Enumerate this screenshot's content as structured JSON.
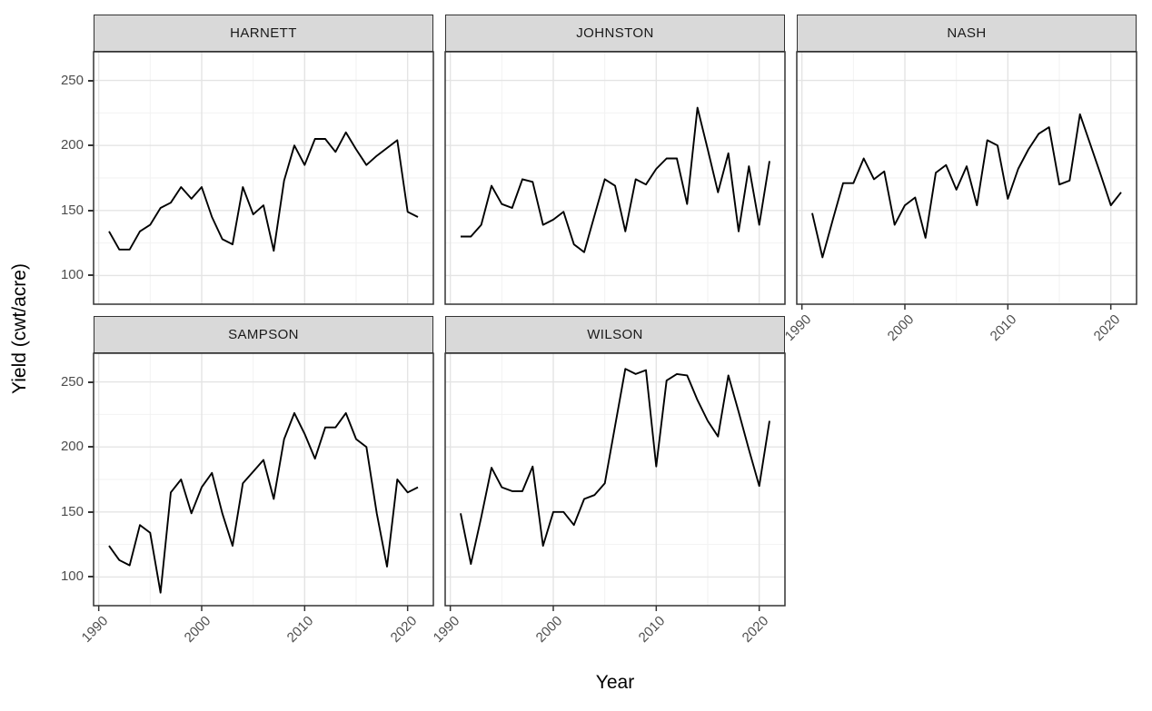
{
  "figure": {
    "kind": "faceted line chart",
    "x_axis_title": "Year",
    "y_axis_title": "Yield (cwt/acre)"
  },
  "chart_data": {
    "type": "line",
    "title": "",
    "xlabel": "Year",
    "ylabel": "Yield (cwt/acre)",
    "facet_labels": [
      "HARNETT",
      "JOHNSTON",
      "NASH",
      "SAMPSON",
      "WILSON"
    ],
    "x": [
      1991,
      1992,
      1993,
      1994,
      1995,
      1996,
      1997,
      1998,
      1999,
      2000,
      2001,
      2002,
      2003,
      2004,
      2005,
      2006,
      2007,
      2008,
      2009,
      2010,
      2011,
      2012,
      2013,
      2014,
      2015,
      2016,
      2017,
      2018,
      2019,
      2020,
      2021
    ],
    "x_ticks": [
      1990,
      2000,
      2010,
      2020
    ],
    "y_ticks": [
      100,
      150,
      200,
      250
    ],
    "x_minor_ticks": [
      1995,
      2005,
      2015
    ],
    "y_minor_ticks": [
      125,
      175,
      225
    ],
    "x_range": [
      1989.5,
      2022.5
    ],
    "y_range": [
      78,
      272
    ],
    "grid": true,
    "legend_position": "none",
    "line_color": "#000000",
    "strip_fill": "#d9d9d9",
    "series": [
      {
        "name": "HARNETT",
        "values": [
          134,
          120,
          120,
          134,
          139,
          152,
          156,
          168,
          159,
          168,
          145,
          128,
          124,
          168,
          147,
          154,
          119,
          173,
          200,
          185,
          205,
          205,
          195,
          210,
          197,
          185,
          192,
          198,
          204,
          149,
          145
        ]
      },
      {
        "name": "JOHNSTON",
        "values": [
          130,
          130,
          139,
          169,
          155,
          152,
          174,
          172,
          139,
          143,
          149,
          124,
          118,
          146,
          174,
          169,
          134,
          174,
          170,
          182,
          190,
          190,
          155,
          229,
          197,
          164,
          194,
          134,
          184,
          139,
          188
        ]
      },
      {
        "name": "NASH",
        "values": [
          148,
          114,
          143,
          171,
          171,
          190,
          174,
          180,
          139,
          154,
          160,
          129,
          179,
          185,
          166,
          184,
          154,
          204,
          200,
          159,
          182,
          197,
          209,
          214,
          170,
          173,
          224,
          201,
          178,
          154,
          164
        ]
      },
      {
        "name": "SAMPSON",
        "values": [
          124,
          113,
          109,
          140,
          134,
          88,
          165,
          175,
          149,
          169,
          180,
          149,
          124,
          172,
          181,
          190,
          160,
          206,
          226,
          210,
          191,
          215,
          215,
          226,
          206,
          200,
          149,
          108,
          175,
          165,
          169
        ]
      },
      {
        "name": "WILSON",
        "values": [
          149,
          110,
          146,
          184,
          169,
          166,
          166,
          185,
          124,
          150,
          150,
          140,
          160,
          163,
          172,
          216,
          260,
          256,
          259,
          185,
          251,
          256,
          255,
          236,
          220,
          208,
          255,
          227,
          198,
          170,
          220
        ]
      }
    ]
  }
}
